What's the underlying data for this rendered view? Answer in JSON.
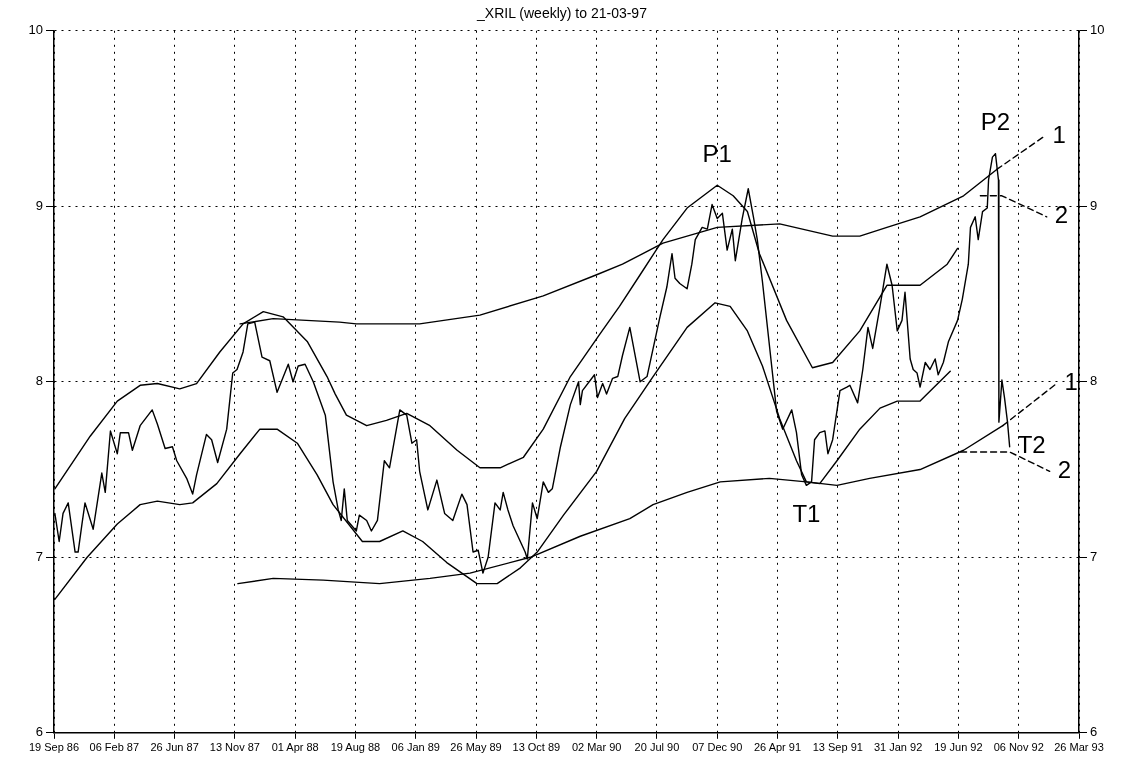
{
  "chart_data": {
    "type": "line",
    "title": "_XRIL (weekly) to 21-03-97",
    "xlim": [
      "1986-09-19",
      "1993-03-26"
    ],
    "xticks": [
      {
        "value": "1986-09-19",
        "label": "19 Sep 86"
      },
      {
        "value": "1987-02-06",
        "label": "06 Feb 87"
      },
      {
        "value": "1987-06-26",
        "label": "26 Jun 87"
      },
      {
        "value": "1987-11-13",
        "label": "13 Nov 87"
      },
      {
        "value": "1988-04-01",
        "label": "01 Apr 88"
      },
      {
        "value": "1988-08-19",
        "label": "19 Aug 88"
      },
      {
        "value": "1989-01-06",
        "label": "06 Jan 89"
      },
      {
        "value": "1989-05-26",
        "label": "26 May 89"
      },
      {
        "value": "1989-10-13",
        "label": "13 Oct 89"
      },
      {
        "value": "1990-03-02",
        "label": "02 Mar 90"
      },
      {
        "value": "1990-07-20",
        "label": "20 Jul 90"
      },
      {
        "value": "1990-12-07",
        "label": "07 Dec 90"
      },
      {
        "value": "1991-04-26",
        "label": "26 Apr 91"
      },
      {
        "value": "1991-09-13",
        "label": "13 Sep 91"
      },
      {
        "value": "1992-01-31",
        "label": "31 Jan 92"
      },
      {
        "value": "1992-06-19",
        "label": "19 Jun 92"
      },
      {
        "value": "1992-11-06",
        "label": "06 Nov 92"
      },
      {
        "value": "1993-03-26",
        "label": "26 Mar 93"
      }
    ],
    "ylim": [
      6,
      10
    ],
    "yticks": [
      6,
      7,
      8,
      9,
      10
    ],
    "y2lim": [
      6,
      10
    ],
    "y2ticks": [
      6,
      7,
      8,
      9,
      10
    ],
    "grid": true,
    "marker": "none",
    "series": [
      {
        "color": "#000000",
        "x": [
          "1986-09-21",
          "1986-10-01",
          "1986-10-10",
          "1986-10-22",
          "1986-11-07",
          "1986-11-14",
          "1986-11-23",
          "1986-11-30",
          "1986-12-19",
          "1987-01-08",
          "1987-01-16",
          "1987-01-28",
          "1987-02-13",
          "1987-02-20",
          "1987-03-11",
          "1987-03-20",
          "1987-04-07",
          "1987-05-05",
          "1987-05-17",
          "1987-06-04",
          "1987-06-21",
          "1987-07-01",
          "1987-07-24",
          "1987-08-07",
          "1987-08-16",
          "1987-09-08",
          "1987-09-20",
          "1987-10-04",
          "1987-10-25",
          "1987-11-08",
          "1987-11-18",
          "1987-12-02",
          "1987-12-13",
          "1987-12-29",
          "1988-01-15",
          "1988-02-02",
          "1988-02-19",
          "1988-03-16",
          "1988-03-27",
          "1988-04-08",
          "1988-04-24",
          "1988-05-13",
          "1988-06-10",
          "1988-06-28",
          "1988-07-10",
          "1988-07-17",
          "1988-07-24",
          "1988-07-31",
          "1988-08-21",
          "1988-08-28",
          "1988-09-14",
          "1988-09-25",
          "1988-10-09",
          "1988-10-25",
          "1988-11-06",
          "1988-11-22",
          "1988-11-30",
          "1988-12-16",
          "1988-12-28",
          "1989-01-08",
          "1989-01-15",
          "1989-02-03",
          "1989-02-24",
          "1989-03-14",
          "1989-04-02",
          "1989-04-23",
          "1989-05-05",
          "1989-05-19",
          "1989-05-31",
          "1989-06-11",
          "1989-06-23",
          "1989-07-09",
          "1989-07-21",
          "1989-07-28",
          "1989-08-08",
          "1989-08-20",
          "1989-09-17",
          "1989-09-22",
          "1989-10-04",
          "1989-10-15",
          "1989-10-29",
          "1989-11-10",
          "1989-11-19",
          "1989-12-08",
          "1989-12-31",
          "1990-01-19",
          "1990-01-23",
          "1990-01-28",
          "1990-02-25",
          "1990-03-04",
          "1990-03-16",
          "1990-03-25",
          "1990-04-08",
          "1990-04-20",
          "1990-05-01",
          "1990-05-18",
          "1990-06-11",
          "1990-06-27",
          "1990-07-27",
          "1990-08-12",
          "1990-08-24",
          "1990-08-31",
          "1990-09-11",
          "1990-09-28",
          "1990-10-09",
          "1990-10-17",
          "1990-11-02",
          "1990-11-14",
          "1990-11-25",
          "1990-12-07",
          "1990-12-19",
          "1990-12-30",
          "1991-01-11",
          "1991-01-18",
          "1991-02-03",
          "1991-02-17",
          "1991-03-01",
          "1991-03-10",
          "1991-03-22",
          "1991-04-24",
          "1991-05-08",
          "1991-05-29",
          "1991-06-09",
          "1991-06-21",
          "1991-07-02",
          "1991-07-14",
          "1991-07-21",
          "1991-08-02",
          "1991-08-14",
          "1991-08-21",
          "1991-09-01",
          "1991-09-18",
          "1991-10-04",
          "1991-10-11",
          "1991-10-29",
          "1991-11-10",
          "1991-11-22",
          "1991-12-03",
          "1991-12-20",
          "1992-01-05",
          "1992-01-17",
          "1992-01-29",
          "1992-02-09",
          "1992-02-16",
          "1992-02-28",
          "1992-03-06",
          "1992-03-15",
          "1992-03-22",
          "1992-04-03",
          "1992-04-14",
          "1992-04-26",
          "1992-05-03",
          "1992-05-15",
          "1992-05-27",
          "1992-06-17",
          "1992-06-28",
          "1992-07-12",
          "1992-07-17",
          "1992-07-28",
          "1992-08-04",
          "1992-08-14",
          "1992-08-25",
          "1992-08-28",
          "1992-09-06",
          "1992-09-13",
          "1992-09-20",
          "1992-09-21",
          "1992-09-28",
          "1992-10-04",
          "1992-10-11",
          "1992-10-16"
        ],
        "values": [
          7.25,
          7.09,
          7.25,
          7.31,
          7.03,
          7.03,
          7.19,
          7.31,
          7.16,
          7.48,
          7.37,
          7.72,
          7.59,
          7.71,
          7.71,
          7.61,
          7.75,
          7.84,
          7.76,
          7.62,
          7.63,
          7.55,
          7.45,
          7.36,
          7.47,
          7.7,
          7.67,
          7.54,
          7.73,
          8.05,
          8.07,
          8.17,
          8.33,
          8.34,
          8.14,
          8.12,
          7.94,
          8.1,
          8.0,
          8.09,
          8.1,
          8.0,
          7.81,
          7.43,
          7.27,
          7.21,
          7.39,
          7.21,
          7.15,
          7.24,
          7.21,
          7.15,
          7.21,
          7.55,
          7.51,
          7.73,
          7.84,
          7.81,
          7.65,
          7.67,
          7.49,
          7.27,
          7.44,
          7.25,
          7.21,
          7.36,
          7.3,
          7.03,
          7.04,
          6.91,
          7.0,
          7.31,
          7.27,
          7.37,
          7.27,
          7.18,
          7.03,
          6.99,
          7.31,
          7.22,
          7.43,
          7.37,
          7.39,
          7.63,
          7.87,
          8.0,
          7.87,
          7.95,
          8.04,
          7.91,
          7.99,
          7.93,
          8.02,
          8.03,
          8.15,
          8.31,
          8.0,
          8.03,
          8.37,
          8.54,
          8.73,
          8.59,
          8.56,
          8.53,
          8.67,
          8.81,
          8.88,
          8.87,
          9.01,
          8.93,
          8.96,
          8.75,
          8.87,
          8.69,
          8.93,
          9.1,
          8.94,
          8.81,
          8.57,
          7.83,
          7.73,
          7.84,
          7.71,
          7.47,
          7.41,
          7.43,
          7.67,
          7.71,
          7.72,
          7.59,
          7.67,
          7.95,
          7.97,
          7.98,
          7.88,
          8.07,
          8.31,
          8.19,
          8.43,
          8.67,
          8.55,
          8.29,
          8.35,
          8.51,
          8.13,
          8.07,
          8.05,
          7.97,
          8.11,
          8.07,
          8.13,
          8.04,
          8.11,
          8.23,
          8.35,
          8.47,
          8.67,
          8.88,
          8.94,
          8.81,
          8.97,
          8.99,
          9.15,
          9.28,
          9.3,
          9.15,
          7.77,
          8.01,
          7.91,
          7.77,
          7.63
        ]
      },
      {
        "color": "#000000",
        "x": [
          "1986-09-21",
          "1986-12-12",
          "1987-02-13",
          "1987-04-07",
          "1987-05-17",
          "1987-07-08",
          "1987-08-16",
          "1987-10-09",
          "1987-12-02",
          "1988-01-18",
          "1988-03-04",
          "1988-04-29",
          "1988-06-14",
          "1988-07-03",
          "1988-07-29",
          "1988-09-14",
          "1988-10-30",
          "1988-12-16",
          "1989-02-08",
          "1989-04-12",
          "1989-06-04",
          "1989-07-21",
          "1989-09-13",
          "1989-10-29",
          "1989-12-31",
          "1990-03-09",
          "1990-04-24",
          "1990-06-11",
          "1990-08-03",
          "1990-09-28",
          "1990-12-07",
          "1991-01-13",
          "1991-02-15",
          "1991-03-15",
          "1991-05-17",
          "1991-07-16",
          "1991-09-01",
          "1991-11-03",
          "1992-01-05",
          "1992-03-22",
          "1992-05-24",
          "1992-06-17"
        ],
        "values": [
          7.39,
          7.69,
          7.89,
          7.98,
          7.99,
          7.96,
          7.99,
          8.17,
          8.33,
          8.4,
          8.37,
          8.23,
          8.03,
          7.93,
          7.81,
          7.75,
          7.78,
          7.82,
          7.75,
          7.61,
          7.51,
          7.51,
          7.57,
          7.73,
          8.03,
          8.27,
          8.43,
          8.61,
          8.81,
          8.99,
          9.12,
          9.06,
          8.97,
          8.73,
          8.35,
          8.08,
          8.11,
          8.29,
          8.55,
          8.55,
          8.67,
          8.76
        ]
      },
      {
        "color": "#000000",
        "x": [
          "1986-09-21",
          "1986-12-05",
          "1987-02-13",
          "1987-04-07",
          "1987-05-17",
          "1987-07-08",
          "1987-08-07",
          "1987-10-02",
          "1987-11-25",
          "1988-01-10",
          "1988-02-19",
          "1988-04-06",
          "1988-05-22",
          "1988-06-28",
          "1988-09-04",
          "1988-10-14",
          "1988-12-07",
          "1989-01-22",
          "1989-03-19",
          "1989-05-28",
          "1989-07-14",
          "1989-09-06",
          "1989-10-15",
          "1989-12-15",
          "1990-03-02",
          "1990-05-06",
          "1990-07-11",
          "1990-09-28",
          "1990-12-02",
          "1991-01-06",
          "1991-02-15",
          "1991-03-22",
          "1991-05-01",
          "1991-06-09",
          "1991-07-02",
          "1991-08-02",
          "1991-09-11",
          "1991-11-03",
          "1991-12-20",
          "1992-01-29",
          "1992-03-22",
          "1992-05-31"
        ],
        "values": [
          6.76,
          7.0,
          7.19,
          7.3,
          7.32,
          7.3,
          7.31,
          7.42,
          7.59,
          7.73,
          7.73,
          7.65,
          7.47,
          7.3,
          7.09,
          7.09,
          7.15,
          7.09,
          6.97,
          6.85,
          6.85,
          6.94,
          7.03,
          7.24,
          7.49,
          7.79,
          8.03,
          8.31,
          8.45,
          8.43,
          8.29,
          8.09,
          7.79,
          7.55,
          7.43,
          7.42,
          7.55,
          7.73,
          7.85,
          7.89,
          7.89,
          8.06
        ]
      },
      {
        "color": "#000000",
        "x": [
          "1987-11-25",
          "1988-02-10",
          "1988-07-13",
          "1988-08-21",
          "1989-01-15",
          "1989-06-04",
          "1989-10-29",
          "1990-03-02",
          "1990-05-01",
          "1990-08-03",
          "1990-12-07",
          "1991-05-01",
          "1991-09-01",
          "1991-11-03",
          "1992-01-05",
          "1992-03-22",
          "1992-07-01",
          "1992-09-16"
        ],
        "values": [
          8.33,
          8.36,
          8.34,
          8.33,
          8.33,
          8.38,
          8.49,
          8.61,
          8.67,
          8.79,
          8.88,
          8.9,
          8.83,
          8.83,
          8.88,
          8.94,
          9.06,
          9.21
        ]
      },
      {
        "color": "#000000",
        "x": [
          "1987-11-20",
          "1988-02-10",
          "1988-06-05",
          "1988-10-14",
          "1989-02-08",
          "1989-05-12",
          "1989-09-29",
          "1990-01-23",
          "1990-05-18",
          "1990-07-11",
          "1990-09-28",
          "1990-12-14",
          "1991-04-07",
          "1991-07-02",
          "1991-09-11",
          "1991-11-26",
          "1992-03-22",
          "1992-07-01",
          "1992-09-30"
        ],
        "values": [
          6.85,
          6.88,
          6.87,
          6.85,
          6.88,
          6.91,
          7.0,
          7.12,
          7.22,
          7.3,
          7.37,
          7.43,
          7.45,
          7.43,
          7.41,
          7.45,
          7.5,
          7.61,
          7.75
        ]
      },
      {
        "color": "#000000",
        "line_style": "dashed",
        "x": [
          "1992-09-16",
          "1993-01-05"
        ],
        "values": [
          9.21,
          9.4
        ]
      },
      {
        "color": "#000000",
        "line_style": "dashed",
        "x": [
          "1992-08-09",
          "1992-09-28",
          "1993-01-10"
        ],
        "values": [
          9.06,
          9.06,
          8.94
        ]
      },
      {
        "color": "#000000",
        "line_style": "dashed",
        "x": [
          "1992-09-30",
          "1993-02-02"
        ],
        "values": [
          7.75,
          7.99
        ]
      },
      {
        "color": "#000000",
        "line_style": "dashed",
        "x": [
          "1992-06-24",
          "1992-10-16",
          "1993-01-17"
        ],
        "values": [
          7.6,
          7.6,
          7.49
        ]
      }
    ],
    "annotations": [
      {
        "text": "P1",
        "x": "1990-12-07",
        "y": 9.12
      },
      {
        "text": "P2",
        "x": "1992-09-13",
        "y": 9.3
      },
      {
        "text": "T1",
        "x": "1991-07-02",
        "y": 7.41
      },
      {
        "text": "T2",
        "x": "1992-10-16",
        "y": 7.63
      },
      {
        "text": "1",
        "x": "1993-01-05",
        "y": 9.4
      },
      {
        "text": "2",
        "x": "1993-01-10",
        "y": 8.94
      },
      {
        "text": "1",
        "x": "1993-02-02",
        "y": 7.99
      },
      {
        "text": "2",
        "x": "1993-01-17",
        "y": 7.49
      }
    ]
  }
}
